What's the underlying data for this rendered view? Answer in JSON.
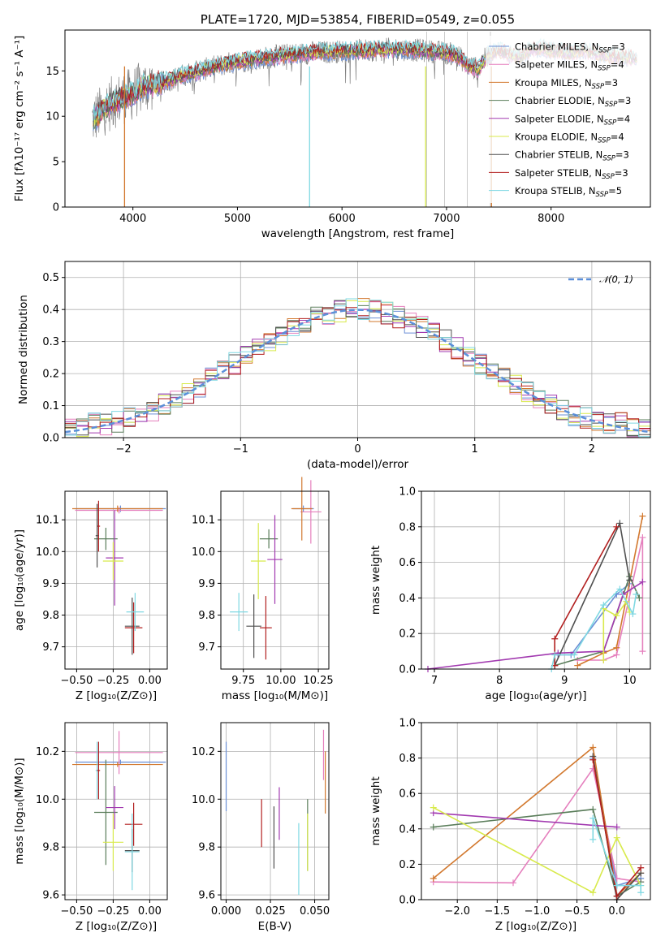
{
  "palette": {
    "Chabrier MILES": "#6b8fd6",
    "Salpeter MILES": "#e57fbd",
    "Kroupa MILES": "#d2782e",
    "Chabrier ELODIE": "#5a7d5a",
    "Salpeter ELODIE": "#a23ab0",
    "Kroupa ELODIE": "#d8ea4b",
    "Chabrier STELIB": "#4f4f4f",
    "Salpeter STELIB": "#b21f1f",
    "Kroupa STELIB": "#7fd8e2",
    "data": "#808080",
    "gauss": "#5b8fd9"
  },
  "chart_data": [
    {
      "id": "spectrum",
      "type": "line",
      "title": "PLATE=1720, MJD=53854, FIBERID=0549, z=0.055",
      "xlabel": "wavelength [Angstrom, rest frame]",
      "ylabel": "Flux [fλ10⁻¹⁷ erg cm⁻² s⁻¹ A⁻¹]",
      "xlim": [
        3350,
        8950
      ],
      "ylim": [
        0,
        19.5
      ],
      "xticks": [
        4000,
        5000,
        6000,
        7000,
        8000
      ],
      "yticks": [
        0,
        5,
        10,
        15
      ],
      "grid": false,
      "legend_position": "upper right",
      "continuum": {
        "x": [
          3600,
          3700,
          3800,
          3900,
          4000,
          4100,
          4200,
          4300,
          4400,
          4500,
          4700,
          4900,
          5100,
          5300,
          5500,
          5700,
          5900,
          6100,
          6300,
          6500,
          6700,
          6900,
          7100,
          7200,
          7300,
          7400,
          7500,
          7600,
          7700,
          7800,
          7900,
          8000,
          8100,
          8200,
          8300,
          8400,
          8500,
          8600,
          8700,
          8800
        ],
        "y": [
          9.5,
          10.5,
          11.5,
          12,
          12.5,
          13.3,
          13.5,
          13.8,
          14.2,
          14.6,
          15.2,
          15.8,
          16.2,
          16.5,
          16.8,
          17,
          17.1,
          17.2,
          17.3,
          17.4,
          17.3,
          17.1,
          16.8,
          15.6,
          15.2,
          16.8,
          17.2,
          16.8,
          16.5,
          17.3,
          17.5,
          17.2,
          17.1,
          17,
          17.3,
          17,
          16.8,
          16.6,
          16.5,
          16.4
        ]
      },
      "series": [
        {
          "name": "Chabrier MILES",
          "nssp": "3"
        },
        {
          "name": "Salpeter MILES",
          "nssp": "4"
        },
        {
          "name": "Kroupa MILES",
          "nssp": "3"
        },
        {
          "name": "Chabrier ELODIE",
          "nssp": "3"
        },
        {
          "name": "Salpeter ELODIE",
          "nssp": "4"
        },
        {
          "name": "Kroupa ELODIE",
          "nssp": "4"
        },
        {
          "name": "Chabrier STELIB",
          "nssp": "3"
        },
        {
          "name": "Salpeter STELIB",
          "nssp": "3"
        },
        {
          "name": "Kroupa STELIB",
          "nssp": "5"
        }
      ]
    },
    {
      "id": "residuals",
      "type": "line",
      "xlabel": "(data-model)/error",
      "ylabel": "Normed distribution",
      "xlim": [
        -2.5,
        2.5
      ],
      "ylim": [
        0,
        0.55
      ],
      "xticks": [
        -2,
        -1,
        0,
        1,
        2
      ],
      "xticklabels": [
        "−2",
        "−1",
        "0",
        "1",
        "2"
      ],
      "yticks": [
        0.0,
        0.1,
        0.2,
        0.3,
        0.4,
        0.5
      ],
      "grid": true,
      "legend_position": "upper right",
      "gauss_label": "𝒩(0, 1)",
      "bin_width": 0.1
    },
    {
      "id": "age_vs_Z",
      "type": "scatter",
      "xlabel": "Z [log₁₀(Z/Z⊙)]",
      "ylabel": "age  [log₁₀(age/yr)]",
      "xlim": [
        -0.58,
        0.12
      ],
      "ylim": [
        9.63,
        10.19
      ],
      "xticks": [
        -0.5,
        -0.25,
        0.0
      ],
      "xticklabels": [
        "−0.50",
        "−0.25",
        "0.00"
      ],
      "yticks": [
        9.7,
        9.8,
        9.9,
        10.0,
        10.1
      ],
      "grid": true,
      "points": [
        {
          "c": "Chabrier MILES",
          "x": -0.2,
          "xe": 0.31,
          "y": 10.135,
          "ye": 0.01
        },
        {
          "c": "Salpeter MILES",
          "x": -0.21,
          "xe": 0.3,
          "y": 10.13,
          "ye": 0.01
        },
        {
          "c": "Kroupa MILES",
          "x": -0.22,
          "xe": 0.31,
          "y": 10.135,
          "ye": 0.01
        },
        {
          "c": "Chabrier ELODIE",
          "x": -0.3,
          "xe": 0.08,
          "y": 10.04,
          "ye": 0.035
        },
        {
          "c": "Salpeter ELODIE",
          "x": -0.24,
          "xe": 0.06,
          "y": 9.98,
          "ye": 0.15
        },
        {
          "c": "Kroupa ELODIE",
          "x": -0.25,
          "xe": 0.07,
          "y": 9.97,
          "ye": 0.06
        },
        {
          "c": "Chabrier STELIB",
          "x": -0.12,
          "xe": 0.05,
          "y": 9.765,
          "ye": 0.09
        },
        {
          "c": "Salpeter STELIB",
          "x": -0.11,
          "xe": 0.06,
          "y": 9.76,
          "ye": 0.08
        },
        {
          "c": "Kroupa STELIB",
          "x": -0.1,
          "xe": 0.06,
          "y": 9.81,
          "ye": 0.06
        },
        {
          "c": "Salpeter STELIB",
          "x": -0.35,
          "xe": 0.01,
          "y": 10.08,
          "ye": 0.08
        },
        {
          "c": "Chabrier STELIB",
          "x": -0.36,
          "xe": 0.01,
          "y": 10.05,
          "ye": 0.1
        }
      ]
    },
    {
      "id": "age_vs_mass",
      "type": "scatter",
      "xlabel": "mass [log₁₀(M/M⊙)]",
      "xlim": [
        9.6,
        10.32
      ],
      "ylim": [
        9.63,
        10.19
      ],
      "xticks": [
        9.75,
        10.0,
        10.25
      ],
      "xticklabels": [
        "9.75",
        "10.00",
        "10.25"
      ],
      "yticks": [
        9.7,
        9.8,
        9.9,
        10.0,
        10.1
      ],
      "grid": true,
      "points": [
        {
          "c": "Chabrier MILES",
          "x": 10.15,
          "xe": 0.07,
          "y": 10.135,
          "ye": 0.01
        },
        {
          "c": "Salpeter MILES",
          "x": 10.2,
          "xe": 0.07,
          "y": 10.125,
          "ye": 0.1
        },
        {
          "c": "Kroupa MILES",
          "x": 10.14,
          "xe": 0.07,
          "y": 10.135,
          "ye": 0.1
        },
        {
          "c": "Chabrier ELODIE",
          "x": 9.92,
          "xe": 0.06,
          "y": 10.04,
          "ye": 0.03
        },
        {
          "c": "Salpeter ELODIE",
          "x": 9.96,
          "xe": 0.05,
          "y": 9.975,
          "ye": 0.14
        },
        {
          "c": "Kroupa ELODIE",
          "x": 9.85,
          "xe": 0.05,
          "y": 9.97,
          "ye": 0.12
        },
        {
          "c": "Chabrier STELIB",
          "x": 9.82,
          "xe": 0.05,
          "y": 9.765,
          "ye": 0.1
        },
        {
          "c": "Salpeter STELIB",
          "x": 9.9,
          "xe": 0.04,
          "y": 9.76,
          "ye": 0.1
        },
        {
          "c": "Kroupa STELIB",
          "x": 9.72,
          "xe": 0.06,
          "y": 9.81,
          "ye": 0.06
        }
      ]
    },
    {
      "id": "weight_vs_age",
      "type": "line",
      "xlabel": "age  [log₁₀(age/yr)]",
      "ylabel": "mass weight",
      "xlim": [
        6.8,
        10.32
      ],
      "ylim": [
        0,
        1.0
      ],
      "xticks": [
        7,
        8,
        9,
        10
      ],
      "yticks": [
        0.0,
        0.2,
        0.4,
        0.6,
        0.8,
        1.0
      ],
      "grid": true,
      "series": [
        {
          "c": "Chabrier MILES",
          "x": [
            8.9,
            9.1,
            9.8,
            10.0
          ],
          "y": [
            0.08,
            0.08,
            0.42,
            0.48
          ]
        },
        {
          "c": "Salpeter MILES",
          "x": [
            9.2,
            9.6,
            9.8,
            10.2,
            10.2
          ],
          "y": [
            0.05,
            0.05,
            0.08,
            0.74,
            0.1
          ]
        },
        {
          "c": "Kroupa MILES",
          "x": [
            9.2,
            9.6,
            9.8,
            10.2
          ],
          "y": [
            0.02,
            0.09,
            0.12,
            0.86
          ]
        },
        {
          "c": "Chabrier ELODIE",
          "x": [
            8.85,
            9.6,
            10.0,
            10.15
          ],
          "y": [
            0.02,
            0.1,
            0.52,
            0.4
          ]
        },
        {
          "c": "Salpeter ELODIE",
          "x": [
            6.9,
            8.9,
            9.6,
            9.9,
            10.2
          ],
          "y": [
            0.0,
            0.09,
            0.1,
            0.42,
            0.49
          ]
        },
        {
          "c": "Kroupa ELODIE",
          "x": [
            9.6,
            9.6,
            9.8,
            9.95,
            10.0
          ],
          "y": [
            0.05,
            0.34,
            0.3,
            0.38,
            0.32
          ]
        },
        {
          "c": "Chabrier STELIB",
          "x": [
            8.85,
            9.85,
            10.0
          ],
          "y": [
            0.02,
            0.82,
            0.5
          ]
        },
        {
          "c": "Salpeter STELIB",
          "x": [
            8.85,
            8.85,
            9.8
          ],
          "y": [
            0.02,
            0.17,
            0.8
          ]
        },
        {
          "c": "Kroupa STELIB",
          "x": [
            8.8,
            8.85,
            9.15,
            9.6,
            9.85,
            10.05,
            10.1
          ],
          "y": [
            0.0,
            0.08,
            0.08,
            0.36,
            0.45,
            0.31,
            0.42
          ]
        }
      ]
    },
    {
      "id": "mass_vs_Z",
      "type": "scatter",
      "xlabel": "Z [log₁₀(Z/Z⊙)]",
      "ylabel": "mass [log₁₀(M/M⊙)]",
      "xlim": [
        -0.58,
        0.12
      ],
      "ylim": [
        9.58,
        10.32
      ],
      "xticks": [
        -0.5,
        -0.25,
        0.0
      ],
      "xticklabels": [
        "−0.50",
        "−0.25",
        "0.00"
      ],
      "yticks": [
        9.6,
        9.8,
        10.0,
        10.2
      ],
      "grid": true,
      "points": [
        {
          "c": "Chabrier MILES",
          "x": -0.2,
          "xe": 0.31,
          "y": 10.155,
          "ye": 0.01
        },
        {
          "c": "Salpeter MILES",
          "x": -0.21,
          "xe": 0.3,
          "y": 10.195,
          "ye": 0.09
        },
        {
          "c": "Kroupa MILES",
          "x": -0.22,
          "xe": 0.31,
          "y": 10.145,
          "ye": 0.01
        },
        {
          "c": "Chabrier ELODIE",
          "x": -0.3,
          "xe": 0.08,
          "y": 9.945,
          "ye": 0.22
        },
        {
          "c": "Salpeter ELODIE",
          "x": -0.24,
          "xe": 0.06,
          "y": 9.965,
          "ye": 0.09
        },
        {
          "c": "Kroupa ELODIE",
          "x": -0.25,
          "xe": 0.07,
          "y": 9.82,
          "ye": 0.12
        },
        {
          "c": "Chabrier STELIB",
          "x": -0.12,
          "xe": 0.05,
          "y": 9.785,
          "ye": 0.09
        },
        {
          "c": "Salpeter STELIB",
          "x": -0.11,
          "xe": 0.06,
          "y": 9.895,
          "ye": 0.09
        },
        {
          "c": "Kroupa STELIB",
          "x": -0.12,
          "xe": 0.05,
          "y": 9.78,
          "ye": 0.16
        },
        {
          "c": "Kroupa STELIB",
          "x": -0.36,
          "xe": 0.01,
          "y": 10.12,
          "ye": 0.12
        },
        {
          "c": "Salpeter STELIB",
          "x": -0.35,
          "xe": 0.01,
          "y": 10.12,
          "ye": 0.12
        }
      ]
    },
    {
      "id": "mass_vs_EBV",
      "type": "scatter",
      "xlabel": "E(B-V)",
      "xlim": [
        -0.003,
        0.058
      ],
      "ylim": [
        9.58,
        10.32
      ],
      "xticks": [
        0.0,
        0.025,
        0.05
      ],
      "xticklabels": [
        "0.000",
        "0.025",
        "0.050"
      ],
      "yticks": [
        9.6,
        9.8,
        10.0,
        10.2
      ],
      "grid": true,
      "points": [
        {
          "c": "Chabrier MILES",
          "x": 0.0,
          "y": 10.095,
          "ye": 0.145
        },
        {
          "c": "Salpeter MILES",
          "x": 0.055,
          "y": 10.185,
          "ye": 0.105
        },
        {
          "c": "Kroupa MILES",
          "x": 0.056,
          "y": 10.07,
          "ye": 0.13
        },
        {
          "c": "Salpeter STELIB",
          "x": 0.02,
          "y": 9.9,
          "ye": 0.1
        },
        {
          "c": "Chabrier STELIB",
          "x": 0.027,
          "y": 9.84,
          "ye": 0.13
        },
        {
          "c": "Salpeter ELODIE",
          "x": 0.03,
          "y": 9.94,
          "ye": 0.11
        },
        {
          "c": "Kroupa STELIB",
          "x": 0.041,
          "y": 9.75,
          "ye": 0.15
        },
        {
          "c": "Chabrier ELODIE",
          "x": 0.046,
          "y": 9.85,
          "ye": 0.15
        },
        {
          "c": "Kroupa ELODIE",
          "x": 0.046,
          "y": 9.82,
          "ye": 0.12
        }
      ]
    },
    {
      "id": "weight_vs_Z",
      "type": "line",
      "xlabel": "Z [log₁₀(Z/Z⊙)]",
      "ylabel": "mass weight",
      "xlim": [
        -2.45,
        0.42
      ],
      "ylim": [
        0,
        1.0
      ],
      "xticks": [
        -2.0,
        -1.5,
        -1.0,
        -0.5,
        0.0
      ],
      "xticklabels": [
        "−2.0",
        "−1.5",
        "−1.0",
        "−0.5",
        "0.0"
      ],
      "yticks": [
        0.0,
        0.2,
        0.4,
        0.6,
        0.8,
        1.0
      ],
      "grid": true,
      "series": [
        {
          "c": "Chabrier MILES",
          "x": [
            -0.3,
            0.0,
            0.3
          ],
          "y": [
            0.8,
            0.08,
            0.12
          ]
        },
        {
          "c": "Salpeter MILES",
          "x": [
            -2.3,
            -1.3,
            -0.3,
            0.0,
            0.3
          ],
          "y": [
            0.1,
            0.095,
            0.74,
            0.12,
            0.1
          ]
        },
        {
          "c": "Kroupa MILES",
          "x": [
            -2.3,
            -0.3,
            0.0,
            0.3
          ],
          "y": [
            0.12,
            0.86,
            0.02,
            0.15
          ]
        },
        {
          "c": "Chabrier ELODIE",
          "x": [
            -2.3,
            -0.3,
            0.0,
            0.3
          ],
          "y": [
            0.41,
            0.51,
            0.02,
            0.1
          ]
        },
        {
          "c": "Salpeter ELODIE",
          "x": [
            -2.3,
            -0.3,
            0.0
          ],
          "y": [
            0.49,
            0.42,
            0.41
          ]
        },
        {
          "c": "Kroupa ELODIE",
          "x": [
            -2.3,
            -0.3,
            0.0,
            0.3
          ],
          "y": [
            0.52,
            0.04,
            0.35,
            0.08
          ]
        },
        {
          "c": "Chabrier STELIB",
          "x": [
            -0.3,
            0.0,
            0.3
          ],
          "y": [
            0.81,
            0.0,
            0.15
          ]
        },
        {
          "c": "Salpeter STELIB",
          "x": [
            -0.3,
            0.0,
            0.3
          ],
          "y": [
            0.79,
            0.02,
            0.18
          ]
        },
        {
          "c": "Kroupa STELIB",
          "x": [
            -0.3,
            -0.3,
            0.0,
            0.3,
            0.3
          ],
          "y": [
            0.34,
            0.46,
            0.08,
            0.08,
            0.04
          ]
        }
      ]
    }
  ]
}
